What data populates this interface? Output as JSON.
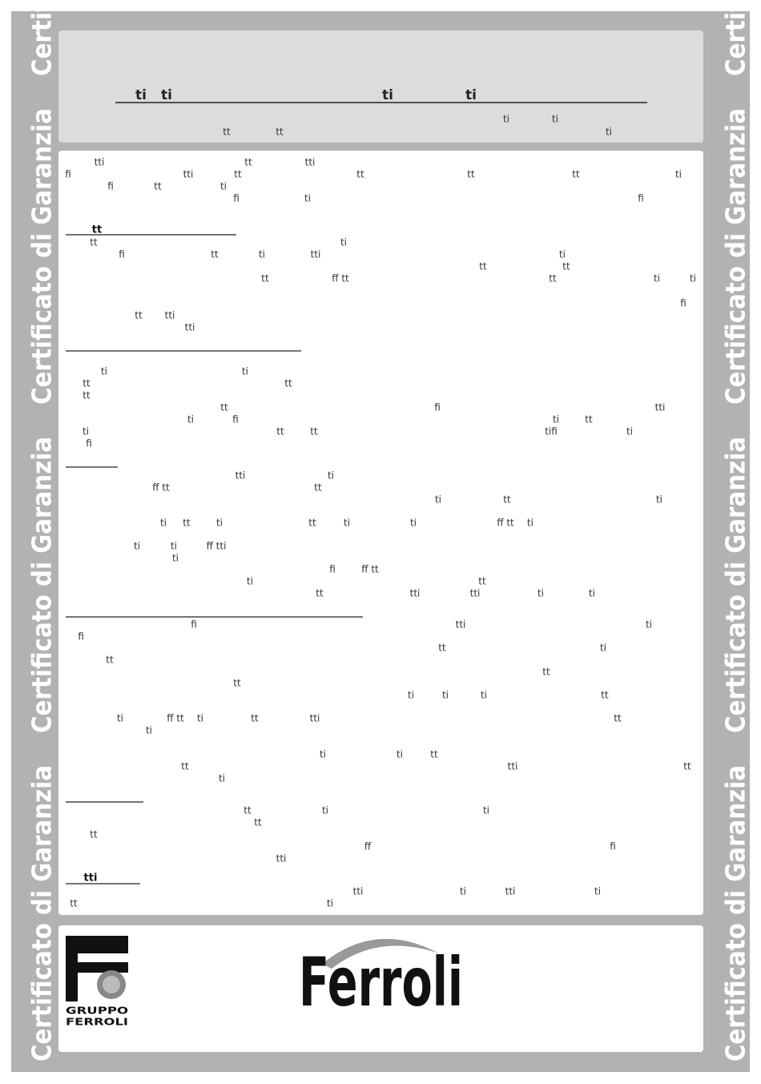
{
  "side_label": "Certificato di Garanzia",
  "header": {
    "lines": [
      [
        "ti",
        "ti",
        "ti",
        "ti"
      ],
      [
        "ti",
        "ti"
      ],
      [
        "tt",
        "tt",
        "ti"
      ]
    ]
  },
  "body": {
    "headings": [
      "tt",
      "tti"
    ],
    "lines": [
      [
        "tti",
        "tt",
        "tti"
      ],
      [
        "fi",
        "tti",
        "tt",
        "tt",
        "tt",
        "tt",
        "ti"
      ],
      [
        "fi",
        "tt",
        "ti"
      ],
      [
        "fi",
        "ti",
        "fi"
      ],
      [
        "tt",
        "ti"
      ],
      [
        "fi",
        "tt",
        "ti",
        "tti",
        "ti"
      ],
      [
        "tt",
        "tt"
      ],
      [
        "tt",
        "ff tt",
        "tt",
        "ti",
        "ti"
      ],
      [
        "fi"
      ],
      [
        "tt",
        "tti"
      ],
      [
        "tti"
      ],
      [
        "ti",
        "ti"
      ],
      [
        "tt",
        "tt"
      ],
      [
        "tt"
      ],
      [
        "tt",
        "fi",
        "tti"
      ],
      [
        "ti",
        "fi",
        "ti",
        "tt"
      ],
      [
        "ti",
        "tt",
        "tt",
        "tifi",
        "ti"
      ],
      [
        "fi"
      ],
      [
        "tti",
        "ti"
      ],
      [
        "ff tt",
        "tt"
      ],
      [
        "ti",
        "tt",
        "ti"
      ],
      [
        "ti",
        "tt",
        "ti",
        "tt",
        "ti",
        "ti",
        "ff tt",
        "ti"
      ],
      [
        "ti",
        "ti",
        "ff tti"
      ],
      [
        "ti"
      ],
      [
        "fi",
        "ff tt"
      ],
      [
        "ti",
        "tt"
      ],
      [
        "tt",
        "tti",
        "tti",
        "ti",
        "ti"
      ],
      [
        "fi",
        "tti",
        "ti"
      ],
      [
        "fi"
      ],
      [
        "tt",
        "ti"
      ],
      [
        "tt"
      ],
      [
        "tt"
      ],
      [
        "tt"
      ],
      [
        "ti",
        "ti",
        "ti",
        "tt"
      ],
      [
        "ti",
        "ff tt",
        "ti",
        "tt",
        "tti",
        "tt"
      ],
      [
        "ti"
      ],
      [
        "ti",
        "ti",
        "tt"
      ],
      [
        "tt",
        "tti",
        "tt"
      ],
      [
        "ti"
      ],
      [
        "tt",
        "ti",
        "ti"
      ],
      [
        "tt"
      ],
      [
        "tt"
      ],
      [
        "ff",
        "fi"
      ],
      [
        "tti"
      ],
      [
        "tti",
        "ti",
        "tti",
        "ti"
      ],
      [
        "tt",
        "ti"
      ]
    ]
  },
  "footer": {
    "group": [
      "GRUPPO",
      "FERROLI"
    ],
    "brand": "Ferroli"
  }
}
